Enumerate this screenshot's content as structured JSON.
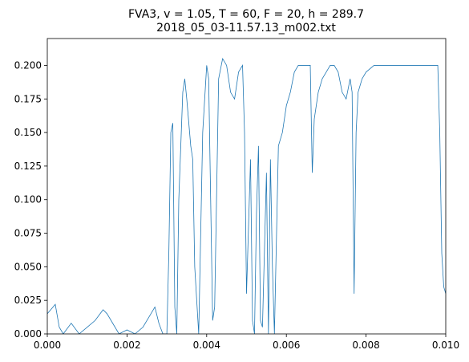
{
  "chart_data": {
    "type": "line",
    "title": "FVA3, v = 1.05, T = 60, F = 20, h = 289.7",
    "subtitle": "2018_05_03-11.57.13_m002.txt",
    "color": "#1f77b4",
    "x": [
      0,
      0.0002,
      0.0003,
      0.0004,
      0.0006,
      0.0008,
      0.001,
      0.0012,
      0.0014,
      0.0015,
      0.0017,
      0.0018,
      0.002,
      0.0022,
      0.0024,
      0.0026,
      0.0027,
      0.0028,
      0.0029,
      0.003,
      0.00305,
      0.0031,
      0.00315,
      0.0032,
      0.00325,
      0.0033,
      0.0034,
      0.00345,
      0.0035,
      0.0036,
      0.00365,
      0.0037,
      0.0038,
      0.0039,
      0.004,
      0.00405,
      0.0041,
      0.00415,
      0.0042,
      0.0043,
      0.0044,
      0.0045,
      0.0046,
      0.0047,
      0.0048,
      0.0049,
      0.00495,
      0.005,
      0.00505,
      0.0051,
      0.00515,
      0.0052,
      0.00525,
      0.0053,
      0.00535,
      0.0054,
      0.0055,
      0.00555,
      0.0056,
      0.00565,
      0.0057,
      0.0058,
      0.0059,
      0.006,
      0.0061,
      0.0062,
      0.0063,
      0.0064,
      0.0065,
      0.0066,
      0.00665,
      0.0067,
      0.0068,
      0.0069,
      0.007,
      0.0071,
      0.0072,
      0.0073,
      0.0074,
      0.0075,
      0.0076,
      0.00765,
      0.0077,
      0.00775,
      0.0078,
      0.0079,
      0.008,
      0.0082,
      0.0085,
      0.009,
      0.0095,
      0.0098,
      0.00985,
      0.0099,
      0.00995,
      0.01
    ],
    "values": [
      0.015,
      0.022,
      0.005,
      0,
      0.008,
      0,
      0.005,
      0.01,
      0.018,
      0.015,
      0.005,
      0,
      0.003,
      0,
      0.005,
      0.015,
      0.02,
      0.008,
      0,
      0,
      0.06,
      0.15,
      0.157,
      0.02,
      0,
      0.1,
      0.18,
      0.19,
      0.175,
      0.14,
      0.13,
      0.05,
      0,
      0.15,
      0.2,
      0.19,
      0.1,
      0.01,
      0.02,
      0.19,
      0.205,
      0.2,
      0.18,
      0.175,
      0.195,
      0.2,
      0.15,
      0.03,
      0.08,
      0.13,
      0.01,
      0,
      0.09,
      0.14,
      0.01,
      0.005,
      0.12,
      0,
      0.13,
      0.05,
      0,
      0.14,
      0.15,
      0.17,
      0.18,
      0.195,
      0.2,
      0.2,
      0.2,
      0.2,
      0.12,
      0.16,
      0.18,
      0.19,
      0.195,
      0.2,
      0.2,
      0.195,
      0.18,
      0.175,
      0.19,
      0.18,
      0.03,
      0.15,
      0.18,
      0.19,
      0.195,
      0.2,
      0.2,
      0.2,
      0.2,
      0.2,
      0.15,
      0.06,
      0.035,
      0.03
    ],
    "xlim": [
      0,
      0.01
    ],
    "ylim": [
      0,
      0.22
    ],
    "xticks": [
      {
        "value": 0,
        "label": "0.000"
      },
      {
        "value": 0.002,
        "label": "0.002"
      },
      {
        "value": 0.004,
        "label": "0.004"
      },
      {
        "value": 0.006,
        "label": "0.006"
      },
      {
        "value": 0.008,
        "label": "0.008"
      },
      {
        "value": 0.01,
        "label": "0.010"
      }
    ],
    "yticks": [
      {
        "value": 0,
        "label": "0.000"
      },
      {
        "value": 0.025,
        "label": "0.025"
      },
      {
        "value": 0.05,
        "label": "0.050"
      },
      {
        "value": 0.075,
        "label": "0.075"
      },
      {
        "value": 0.1,
        "label": "0.100"
      },
      {
        "value": 0.125,
        "label": "0.125"
      },
      {
        "value": 0.15,
        "label": "0.150"
      },
      {
        "value": 0.175,
        "label": "0.175"
      },
      {
        "value": 0.2,
        "label": "0.200"
      }
    ]
  }
}
